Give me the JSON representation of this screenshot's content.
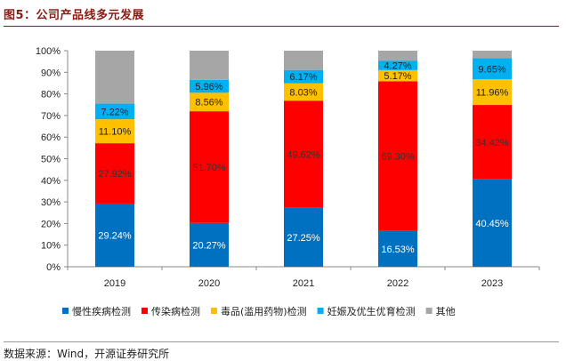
{
  "figure": {
    "title": "图5：公司产品线多元发展",
    "source": "数据来源：Wind，开源证券研究所"
  },
  "chart_data": {
    "type": "bar",
    "stacked": true,
    "categories": [
      "2019",
      "2020",
      "2021",
      "2022",
      "2023"
    ],
    "ylim": [
      0,
      100
    ],
    "yticks": [
      "0%",
      "10%",
      "20%",
      "30%",
      "40%",
      "50%",
      "60%",
      "70%",
      "80%",
      "90%",
      "100%"
    ],
    "legend_position": "bottom",
    "series": [
      {
        "name": "慢性疾病检测",
        "color": "#0070c0",
        "label_color": "#ffffff",
        "values": [
          29.24,
          20.27,
          27.25,
          16.53,
          40.45
        ],
        "labels": [
          "29.24%",
          "20.27%",
          "27.25%",
          "16.53%",
          "40.45%"
        ]
      },
      {
        "name": "传染病检测",
        "color": "#ff0000",
        "label_color": "#333333",
        "values": [
          27.92,
          51.7,
          49.62,
          69.3,
          34.42
        ],
        "labels": [
          "27.92%",
          "51.70%",
          "49.62%",
          "69.30%",
          "34.42%"
        ]
      },
      {
        "name": "毒品(滥用药物)检测",
        "color": "#ffc000",
        "label_color": "#222222",
        "values": [
          11.1,
          8.56,
          8.03,
          5.17,
          11.96
        ],
        "labels": [
          "11.10%",
          "8.56%",
          "8.03%",
          "5.17%",
          "11.96%"
        ]
      },
      {
        "name": "妊娠及优生优育检测",
        "color": "#00b0f0",
        "label_color": "#222222",
        "values": [
          7.22,
          5.96,
          6.17,
          4.27,
          9.65
        ],
        "labels": [
          "7.22%",
          "5.96%",
          "6.17%",
          "4.27%",
          "9.65%"
        ]
      },
      {
        "name": "其他",
        "color": "#a6a6a6",
        "label_color": "#222222",
        "values": [
          24.52,
          13.51,
          8.93,
          4.73,
          3.52
        ],
        "labels": [
          "",
          "",
          "",
          "",
          ""
        ]
      }
    ]
  }
}
